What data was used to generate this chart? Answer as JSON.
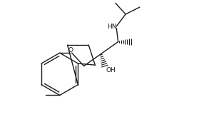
{
  "bg_color": "#ffffff",
  "line_color": "#1a1a1a",
  "figsize": [
    2.86,
    1.85
  ],
  "dpi": 100,
  "xlim": [
    0,
    10
  ],
  "ylim": [
    0,
    6.5
  ]
}
